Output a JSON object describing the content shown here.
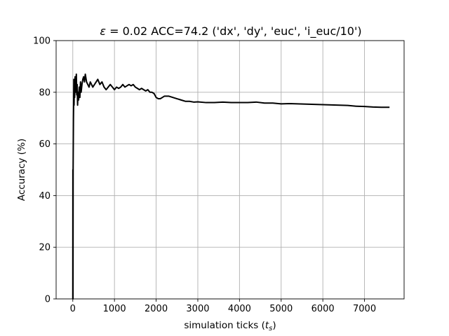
{
  "chart_data": {
    "type": "line",
    "title": {
      "epsilon_symbol": "ε",
      "rest": " = 0.02 ACC=74.2 ('dx', 'dy', 'euc', 'i_euc/10')"
    },
    "xlabel": {
      "prefix": "simulation ticks (",
      "var": "t",
      "sub": "s",
      "suffix": ")"
    },
    "ylabel": "Accuracy (%)",
    "xlim": [
      -400,
      7950
    ],
    "ylim": [
      0,
      100
    ],
    "xticks": [
      0,
      1000,
      2000,
      3000,
      4000,
      5000,
      6000,
      7000
    ],
    "xtick_labels": [
      "0",
      "1000",
      "2000",
      "3000",
      "4000",
      "5000",
      "6000",
      "7000"
    ],
    "yticks": [
      0,
      20,
      40,
      60,
      80,
      100
    ],
    "ytick_labels": [
      "0",
      "20",
      "40",
      "60",
      "80",
      "100"
    ],
    "grid": true,
    "line_color": "#000000",
    "series": [
      {
        "x": [
          0,
          2,
          5,
          8,
          12,
          16,
          20,
          25,
          30,
          38,
          45,
          55,
          65,
          75,
          85,
          95,
          105,
          115,
          125,
          140,
          155,
          170,
          185,
          200,
          220,
          240,
          260,
          280,
          300,
          330,
          360,
          390,
          420,
          450,
          480,
          520,
          560,
          600,
          650,
          700,
          750,
          800,
          850,
          900,
          950,
          1000,
          1050,
          1100,
          1150,
          1200,
          1250,
          1300,
          1350,
          1400,
          1450,
          1500,
          1550,
          1600,
          1650,
          1700,
          1750,
          1800,
          1850,
          1900,
          1950,
          2000,
          2050,
          2100,
          2150,
          2200,
          2300,
          2400,
          2500,
          2600,
          2700,
          2800,
          2900,
          3000,
          3200,
          3400,
          3600,
          3800,
          4000,
          4200,
          4400,
          4600,
          4800,
          5000,
          5200,
          5400,
          5600,
          5800,
          6000,
          6200,
          6400,
          6600,
          6800,
          7000,
          7200,
          7400,
          7600
        ],
        "y": [
          0,
          50,
          0,
          50,
          60,
          70,
          75,
          85,
          75,
          82,
          78,
          86,
          80,
          84,
          87,
          79,
          83,
          75,
          80,
          77,
          82,
          78,
          84,
          80,
          83,
          85,
          86,
          84,
          87,
          84,
          83,
          82,
          84,
          83,
          82,
          83,
          84,
          85,
          83,
          84,
          82,
          81,
          82,
          83,
          82,
          81,
          82,
          81.5,
          82,
          83,
          82,
          82.5,
          83,
          82.5,
          83,
          82,
          81.5,
          81,
          81.5,
          81,
          80.5,
          81,
          80,
          80,
          79.5,
          78,
          77.5,
          77.5,
          78,
          78.5,
          78.5,
          78,
          77.5,
          77,
          76.5,
          76.5,
          76.2,
          76.3,
          76,
          76,
          76.2,
          76,
          76,
          76,
          76.2,
          75.8,
          75.8,
          75.5,
          75.6,
          75.5,
          75.4,
          75.3,
          75.2,
          75.1,
          75,
          74.9,
          74.6,
          74.5,
          74.3,
          74.2,
          74.2
        ]
      }
    ]
  }
}
